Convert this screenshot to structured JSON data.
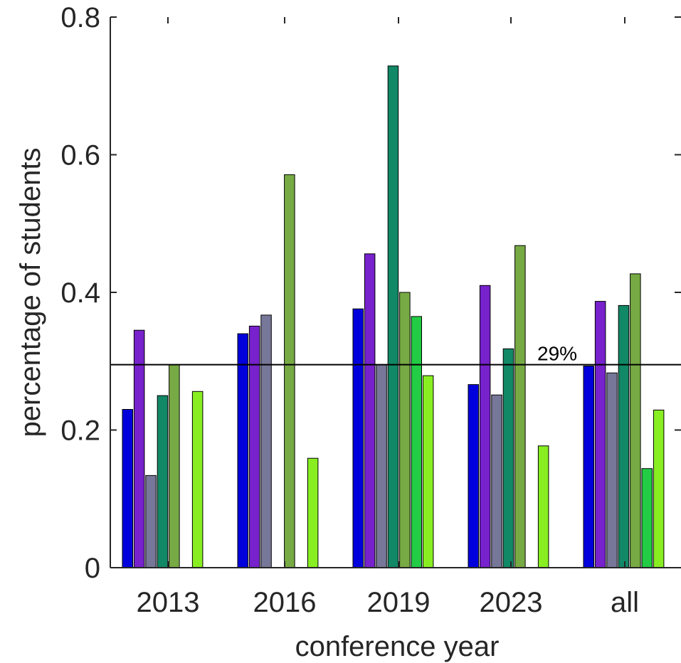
{
  "chart_data": {
    "type": "bar",
    "categories": [
      "2013",
      "2016",
      "2019",
      "2023",
      "all"
    ],
    "xlabel": "conference year",
    "ylabel": "percentage of students",
    "ylim": [
      0,
      0.8
    ],
    "yticks": [
      0,
      0.2,
      0.4,
      0.6,
      0.8
    ],
    "ytick_labels": [
      "0",
      "0.2",
      "0.4",
      "0.6",
      "0.8"
    ],
    "grid": false,
    "legend": "none",
    "series": [
      {
        "color": "#0000dd",
        "values": [
          0.23,
          0.34,
          0.376,
          0.266,
          0.293
        ]
      },
      {
        "color": "#7722cc",
        "values": [
          0.345,
          0.351,
          0.456,
          0.41,
          0.387
        ]
      },
      {
        "color": "#777799",
        "values": [
          0.134,
          0.367,
          0.295,
          0.251,
          0.283
        ]
      },
      {
        "color": "#118866",
        "values": [
          0.25,
          0,
          0.729,
          0.318,
          0.381
        ]
      },
      {
        "color": "#77aa44",
        "values": [
          0.295,
          0.571,
          0.4,
          0.468,
          0.427
        ]
      },
      {
        "color": "#22cc44",
        "values": [
          0,
          0,
          0.365,
          0,
          0.144
        ]
      },
      {
        "color": "#88ee22",
        "values": [
          0.256,
          0.159,
          0.279,
          0.177,
          0.229
        ]
      }
    ],
    "reference_line": {
      "value": 0.295,
      "label": "29%"
    }
  }
}
